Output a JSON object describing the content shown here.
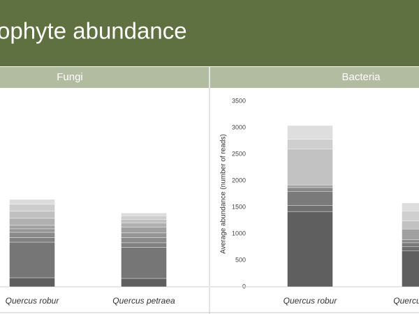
{
  "header": {
    "title": "ophyte abundance"
  },
  "chart_data": [
    {
      "type": "bar",
      "stacked": true,
      "title": "Fungi",
      "categories": [
        "Quercus robur",
        "Quercus petraea"
      ],
      "ylim": [
        0,
        3500
      ],
      "series": [
        {
          "color": "#5f5f5f",
          "values": [
            171,
            158
          ]
        },
        {
          "color": "#767676",
          "values": [
            671,
            586
          ]
        },
        {
          "color": "#808080",
          "values": [
            86,
            86
          ]
        },
        {
          "color": "#8a8a8a",
          "values": [
            99,
            99
          ]
        },
        {
          "color": "#959595",
          "values": [
            66,
            86
          ]
        },
        {
          "color": "#a0a0a0",
          "values": [
            66,
            112
          ]
        },
        {
          "color": "#b0b0b0",
          "values": [
            132,
            79
          ]
        },
        {
          "color": "#c0c0c0",
          "values": [
            132,
            66
          ]
        },
        {
          "color": "#cdcdcd",
          "values": [
            132,
            66
          ]
        },
        {
          "color": "#dcdcdc",
          "values": [
            92,
            53
          ]
        }
      ]
    },
    {
      "type": "bar",
      "stacked": true,
      "title": "Bacteria",
      "y_label": "Average abundance (number of reads)",
      "categories": [
        "Quercus robur",
        "Quercus petraea"
      ],
      "ylim": [
        0,
        3500
      ],
      "yticks": [
        0,
        500,
        1000,
        1500,
        2000,
        2500,
        3000,
        3500
      ],
      "series": [
        {
          "color": "#5f5f5f",
          "values": [
            1420,
            680
          ]
        },
        {
          "color": "#6e6e6e",
          "values": [
            110,
            80
          ]
        },
        {
          "color": "#7a7a7a",
          "values": [
            270,
            70
          ]
        },
        {
          "color": "#888888",
          "values": [
            70,
            60
          ]
        },
        {
          "color": "#a0a0a0",
          "values": [
            50,
            200
          ]
        },
        {
          "color": "#c2c2c2",
          "values": [
            680,
            150
          ]
        },
        {
          "color": "#cfcfcf",
          "values": [
            180,
            190
          ]
        },
        {
          "color": "#dedede",
          "values": [
            260,
            150
          ]
        }
      ]
    }
  ]
}
